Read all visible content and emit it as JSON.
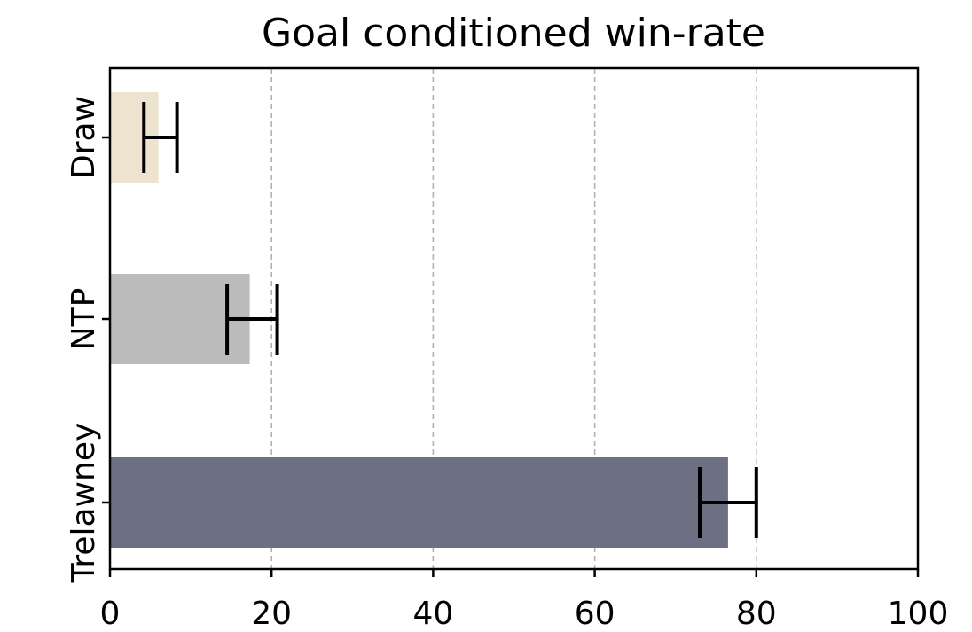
{
  "chart_data": {
    "type": "bar",
    "orientation": "horizontal",
    "title": "Goal conditioned win-rate",
    "xlabel": "",
    "ylabel": "",
    "xlim": [
      0,
      100
    ],
    "x_ticks": [
      "0",
      "20",
      "40",
      "60",
      "80",
      "100"
    ],
    "grid": "x, dashed",
    "categories": [
      "Draw",
      "NTP",
      "Trelawney"
    ],
    "values": [
      6,
      17.3,
      76.5
    ],
    "error_low": [
      4.2,
      14.5,
      73
    ],
    "error_high": [
      8.3,
      20.7,
      80
    ],
    "colors": [
      "#ede3cf",
      "#bbbbbb",
      "#6d7083"
    ]
  }
}
